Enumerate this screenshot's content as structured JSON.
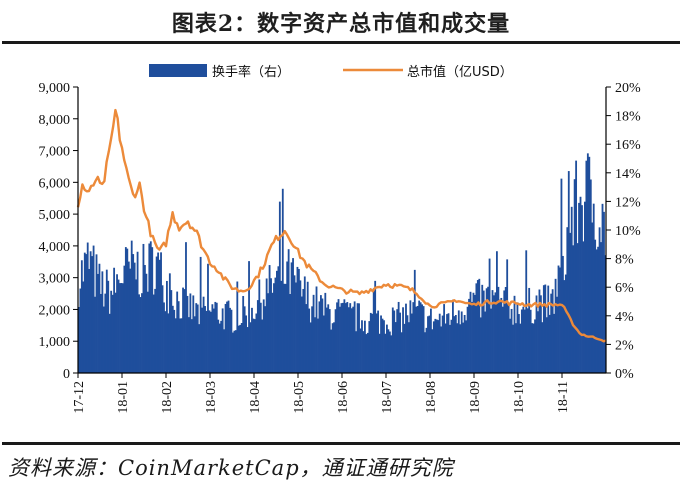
{
  "title": "图表2：数字资产总市值和成交量",
  "source": "资料来源：CoinMarketCap，通证通研究院",
  "colors": {
    "bars": "#1f4e9c",
    "line": "#ec8a3a",
    "axis": "#000000"
  },
  "chart_data": {
    "type": "bar",
    "title": "图表2：数字资产总市值和成交量",
    "legend": {
      "placement": "top",
      "entries": [
        "换手率（右）",
        "总市值（亿USD）"
      ]
    },
    "left_axis": {
      "ylim": [
        0,
        9000
      ],
      "ticks": [
        "0",
        "1,000",
        "2,000",
        "3,000",
        "4,000",
        "5,000",
        "6,000",
        "7,000",
        "8,000",
        "9,000"
      ]
    },
    "right_axis": {
      "ylim": [
        0,
        20
      ],
      "ticks": [
        "0%",
        "2%",
        "4%",
        "6%",
        "8%",
        "10%",
        "12%",
        "14%",
        "16%",
        "18%",
        "20%"
      ]
    },
    "x_ticks": [
      "17-12",
      "18-01",
      "18-02",
      "18-03",
      "18-04",
      "18-05",
      "18-06",
      "18-07",
      "18-08",
      "18-09",
      "18-10",
      "18-11"
    ],
    "grid": false,
    "series": [
      {
        "name": "换手率（右）",
        "type": "bar",
        "axis": "right",
        "x_month": [
          0,
          0.25,
          0.5,
          0.75,
          1,
          1.25,
          1.5,
          1.75,
          2,
          2.25,
          2.5,
          2.75,
          3,
          3.25,
          3.5,
          3.75,
          4,
          4.25,
          4.5,
          4.75,
          5,
          5.25,
          5.5,
          5.75,
          6,
          6.25,
          6.5,
          6.75,
          7,
          7.25,
          7.5,
          7.75,
          8,
          8.25,
          8.5,
          8.75,
          9,
          9.25,
          9.5,
          9.75,
          10,
          10.25,
          10.5,
          10.75,
          11,
          11.25,
          11.5,
          11.75,
          11.95
        ],
        "values": [
          7.0,
          8.5,
          6.5,
          6.0,
          7.5,
          8.0,
          7.5,
          8.5,
          6.5,
          5.5,
          5.0,
          4.5,
          4.8,
          4.5,
          4.2,
          4.5,
          5.0,
          6.0,
          7.0,
          7.5,
          6.5,
          5.5,
          5.0,
          4.5,
          4.5,
          4.3,
          4.0,
          4.0,
          4.0,
          4.1,
          4.5,
          4.5,
          4.0,
          4.0,
          4.5,
          5.0,
          5.5,
          5.5,
          5.5,
          5.0,
          5.0,
          5.0,
          5.5,
          5.0,
          8.0,
          12.0,
          13.5,
          13.0,
          11.0
        ]
      },
      {
        "name": "总市值（亿USD）",
        "type": "line",
        "axis": "left",
        "x_month": [
          0,
          0.1,
          0.25,
          0.4,
          0.55,
          0.7,
          0.85,
          1,
          1.12,
          1.25,
          1.4,
          1.55,
          1.7,
          1.85,
          2,
          2.15,
          2.3,
          2.5,
          2.7,
          2.85,
          3,
          3.15,
          3.3,
          3.5,
          3.65,
          3.8,
          3.95,
          4.1,
          4.25,
          4.4,
          4.55,
          4.7,
          4.85,
          5,
          5.2,
          5.4,
          5.6,
          5.8,
          6,
          6.2,
          6.4,
          6.6,
          6.8,
          7,
          7.2,
          7.4,
          7.6,
          7.8,
          8,
          8.2,
          8.4,
          8.6,
          8.8,
          9,
          9.2,
          9.4,
          9.6,
          9.8,
          10,
          10.2,
          10.4,
          10.6,
          10.8,
          11,
          11.2,
          11.4,
          11.6,
          11.8,
          12
        ],
        "values": [
          5200,
          5900,
          5600,
          6100,
          5800,
          6800,
          8200,
          7100,
          6200,
          5600,
          5900,
          4900,
          4200,
          3800,
          4100,
          5000,
          4600,
          4800,
          4400,
          3900,
          3500,
          3300,
          3000,
          2700,
          2600,
          2600,
          2800,
          3100,
          3500,
          4000,
          4300,
          4500,
          4200,
          3800,
          3400,
          3100,
          2800,
          2700,
          2600,
          2550,
          2500,
          2600,
          2700,
          2800,
          2750,
          2700,
          2600,
          2400,
          2100,
          2150,
          2200,
          2300,
          2200,
          2150,
          2200,
          2250,
          2250,
          2200,
          2200,
          2150,
          2150,
          2150,
          2150,
          2150,
          1650,
          1250,
          1150,
          1100,
          1000
        ]
      }
    ]
  }
}
